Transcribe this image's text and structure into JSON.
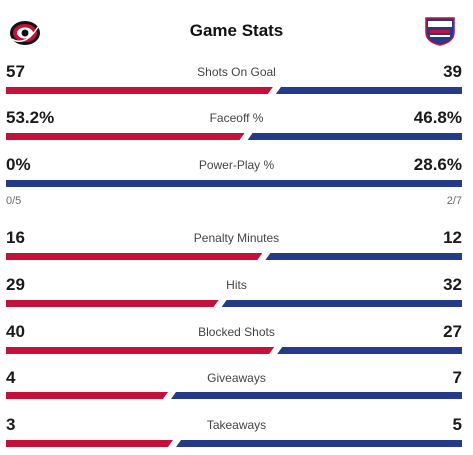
{
  "header": {
    "title": "Game Stats",
    "home_logo": "hurricanes-logo",
    "away_logo": "rangers-logo"
  },
  "colors": {
    "home": "#c4103a",
    "away": "#243b8a"
  },
  "stats": [
    {
      "label": "Shots On Goal",
      "home": "57",
      "away": "39",
      "home_share": 0.594
    },
    {
      "label": "Faceoff %",
      "home": "53.2%",
      "away": "46.8%",
      "home_share": 0.532
    },
    {
      "label": "Power-Play %",
      "home": "0%",
      "away": "28.6%",
      "home_share": 0.0,
      "home_sub": "0/5",
      "away_sub": "2/7"
    },
    {
      "label": "Penalty Minutes",
      "home": "16",
      "away": "12",
      "home_share": 0.571
    },
    {
      "label": "Hits",
      "home": "29",
      "away": "32",
      "home_share": 0.475
    },
    {
      "label": "Blocked Shots",
      "home": "40",
      "away": "27",
      "home_share": 0.597
    },
    {
      "label": "Giveaways",
      "home": "4",
      "away": "7",
      "home_share": 0.364
    },
    {
      "label": "Takeaways",
      "home": "3",
      "away": "5",
      "home_share": 0.375
    }
  ]
}
